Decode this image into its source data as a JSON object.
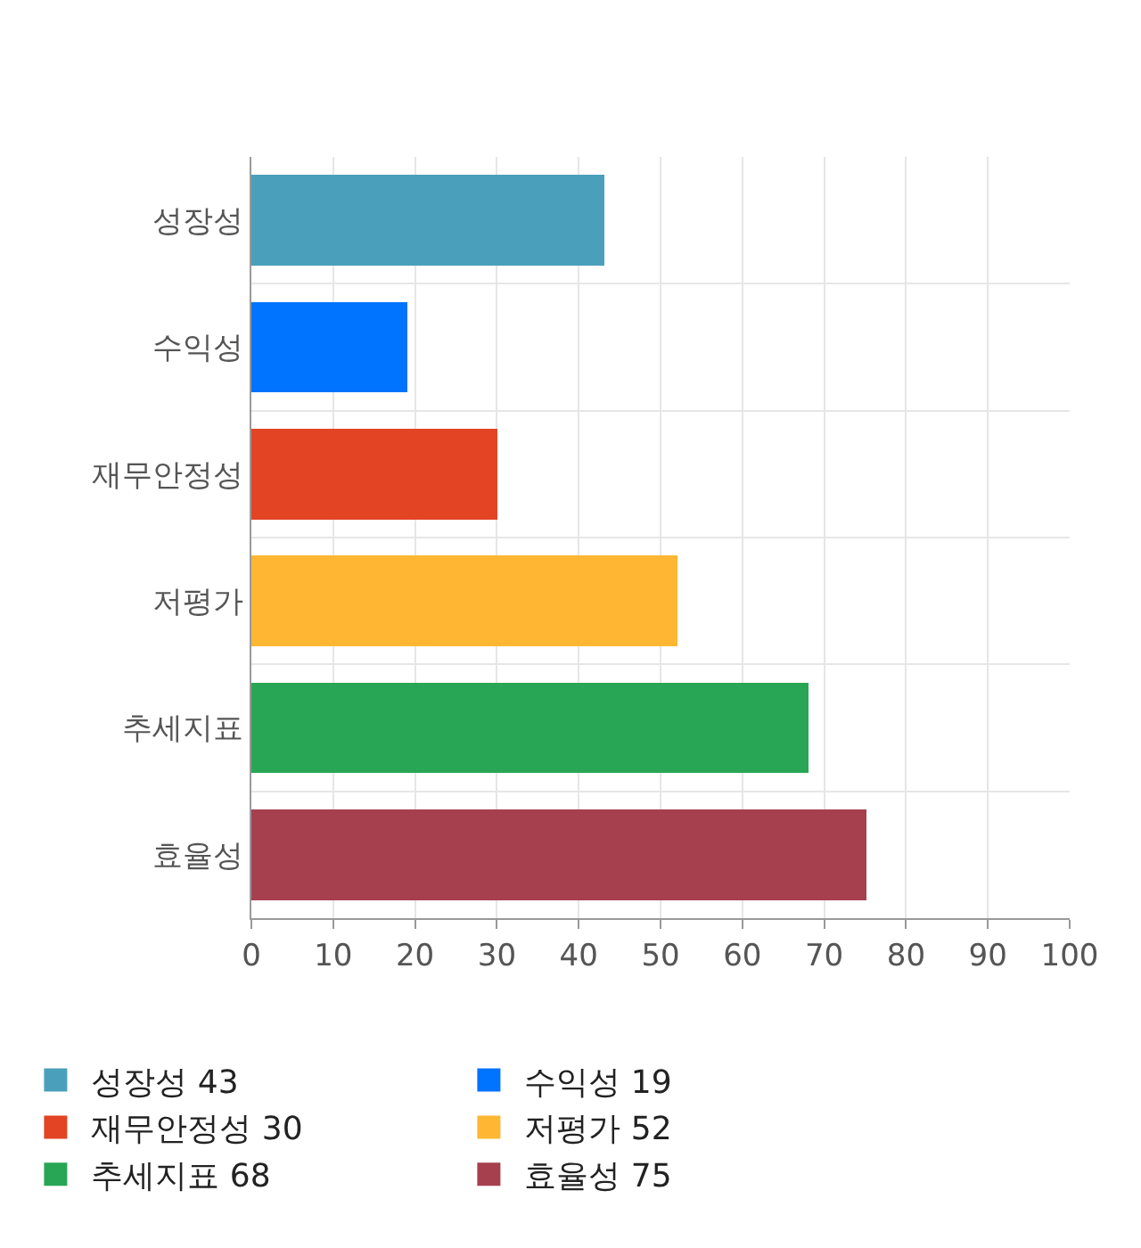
{
  "chart_data": {
    "type": "bar",
    "orientation": "horizontal",
    "stacked": true,
    "categories": [
      "성장성",
      "수익성",
      "재무안정성",
      "저평가",
      "추세지표",
      "효율성"
    ],
    "series": [
      {
        "name": "성장성 43",
        "color": "#4aa0bb",
        "values": [
          43,
          null,
          null,
          null,
          null,
          null
        ]
      },
      {
        "name": "수익성 19",
        "color": "#0073ff",
        "values": [
          null,
          19,
          null,
          null,
          null,
          null
        ]
      },
      {
        "name": "재무안정성 30",
        "color": "#e34424",
        "values": [
          null,
          null,
          30,
          null,
          null,
          null
        ]
      },
      {
        "name": "저평가 52",
        "color": "#ffb733",
        "values": [
          null,
          null,
          null,
          52,
          null,
          null
        ]
      },
      {
        "name": "추세지표 68",
        "color": "#29a655",
        "values": [
          null,
          null,
          null,
          null,
          68,
          null
        ]
      },
      {
        "name": "효율성 75",
        "color": "#a6404f",
        "values": [
          null,
          null,
          null,
          null,
          null,
          75
        ]
      }
    ],
    "xlim": [
      0,
      100
    ],
    "xticks": [
      0,
      10,
      20,
      30,
      40,
      50,
      60,
      70,
      80,
      90,
      100
    ],
    "grid": true,
    "legend": "bottom"
  }
}
